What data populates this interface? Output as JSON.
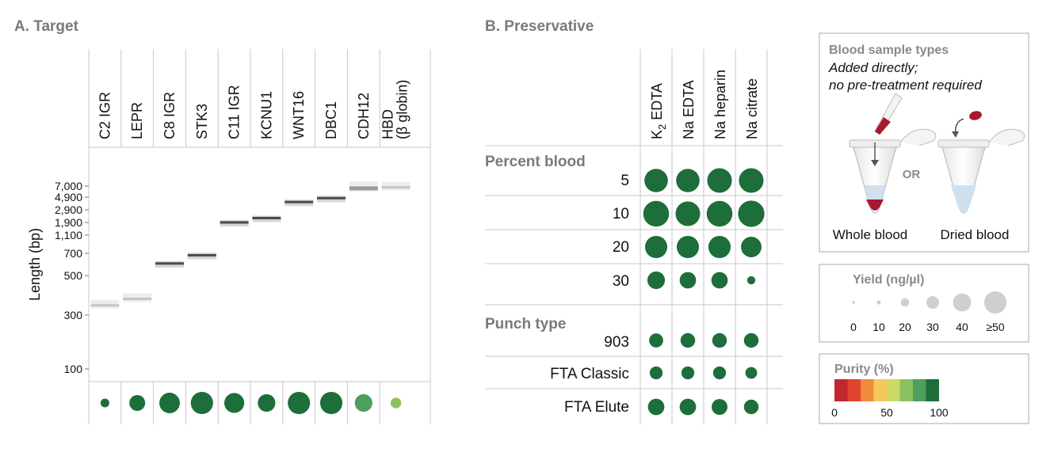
{
  "colors": {
    "green_dark": "#1d6e3b",
    "green_mid": "#4e9e5e",
    "green_light": "#8cc163",
    "grid": "#c8c8c8",
    "title_gray": "#7a7a7a",
    "blood_red": "#a6192e",
    "plasma_blue": "#cfe1ef",
    "legend_gray": "#cfcfcf"
  },
  "panel_a": {
    "title": "A. Target",
    "lanes": [
      "C2 IGR",
      "LEPR",
      "C8 IGR",
      "STK3",
      "C11 IGR",
      "KCNU1",
      "WNT16",
      "DBC1",
      "CDH12",
      "HBD (β globin)"
    ],
    "lane_label_lines": [
      [
        "C2 IGR"
      ],
      [
        "LEPR"
      ],
      [
        "C8 IGR"
      ],
      [
        "STK3"
      ],
      [
        "C11 IGR"
      ],
      [
        "KCNU1"
      ],
      [
        "WNT16"
      ],
      [
        "DBC1"
      ],
      [
        "CDH12"
      ],
      [
        "HBD",
        "(β globin)"
      ]
    ],
    "y_axis_label": "Length (bp)",
    "y_ticks": [
      "7,000",
      "4,900",
      "2,900",
      "1,900",
      "1,100",
      "700",
      "500",
      "300",
      "100"
    ]
  },
  "panel_b": {
    "title": "B. Preservative",
    "columns": [
      "K₂ EDTA",
      "Na EDTA",
      "Na heparin",
      "Na citrate"
    ],
    "sections": [
      {
        "title": "Percent blood",
        "rows": [
          "5",
          "10",
          "20",
          "30"
        ]
      },
      {
        "title": "Punch type",
        "rows": [
          "903",
          "FTA Classic",
          "FTA Elute"
        ]
      }
    ]
  },
  "sample_box": {
    "title": "Blood sample types",
    "subtitle_line1": "Added directly;",
    "subtitle_line2": "no pre-treatment required",
    "or_text": "OR",
    "left_label": "Whole blood",
    "right_label": "Dried blood"
  },
  "yield_legend": {
    "title": "Yield (ng/µl)",
    "labels": [
      "0",
      "10",
      "20",
      "30",
      "40",
      "≥50"
    ]
  },
  "purity_legend": {
    "title": "Purity (%)",
    "labels": [
      "0",
      "50",
      "100"
    ],
    "swatches": [
      "#c1272d",
      "#e0452e",
      "#f08a3c",
      "#f5c85a",
      "#cbd966",
      "#8cc163",
      "#4e9e5e",
      "#1d6e3b"
    ]
  },
  "chart_data": {
    "type": "table",
    "title": "A. Target / B. Preservative",
    "target_gel": {
      "ylabel": "Length (bp)",
      "bands": [
        {
          "lane": "C2 IGR",
          "band_bp": 340,
          "intensity": "faint"
        },
        {
          "lane": "LEPR",
          "band_bp": 370,
          "intensity": "faint"
        },
        {
          "lane": "C8 IGR",
          "band_bp": 600,
          "intensity": "strong"
        },
        {
          "lane": "STK3",
          "band_bp": 680,
          "intensity": "strong"
        },
        {
          "lane": "C11 IGR",
          "band_bp": 1900,
          "intensity": "strong"
        },
        {
          "lane": "KCNU1",
          "band_bp": 2200,
          "intensity": "strong"
        },
        {
          "lane": "WNT16",
          "band_bp": 4000,
          "intensity": "strong"
        },
        {
          "lane": "DBC1",
          "band_bp": 4700,
          "intensity": "strong"
        },
        {
          "lane": "CDH12",
          "band_bp": 6500,
          "intensity": "medium"
        },
        {
          "lane": "HBD (β globin)",
          "band_bp": 6700,
          "intensity": "faint"
        }
      ],
      "yield_ng_ul": [
        15,
        27,
        35,
        38,
        34,
        30,
        38,
        38,
        30,
        18
      ],
      "purity_pct": [
        100,
        100,
        100,
        100,
        100,
        100,
        100,
        100,
        75,
        62
      ]
    },
    "preservative_yield_ng_ul": {
      "columns": [
        "K₂ EDTA",
        "Na EDTA",
        "Na heparin",
        "Na citrate"
      ],
      "5": [
        40,
        40,
        42,
        42
      ],
      "10": [
        44,
        42,
        44,
        45
      ],
      "20": [
        38,
        38,
        38,
        35
      ],
      "30": [
        30,
        28,
        28,
        14
      ],
      "903": [
        24,
        25,
        25,
        25
      ],
      "FTA Classic": [
        22,
        22,
        22,
        20
      ],
      "FTA Elute": [
        28,
        28,
        27,
        25
      ]
    }
  }
}
